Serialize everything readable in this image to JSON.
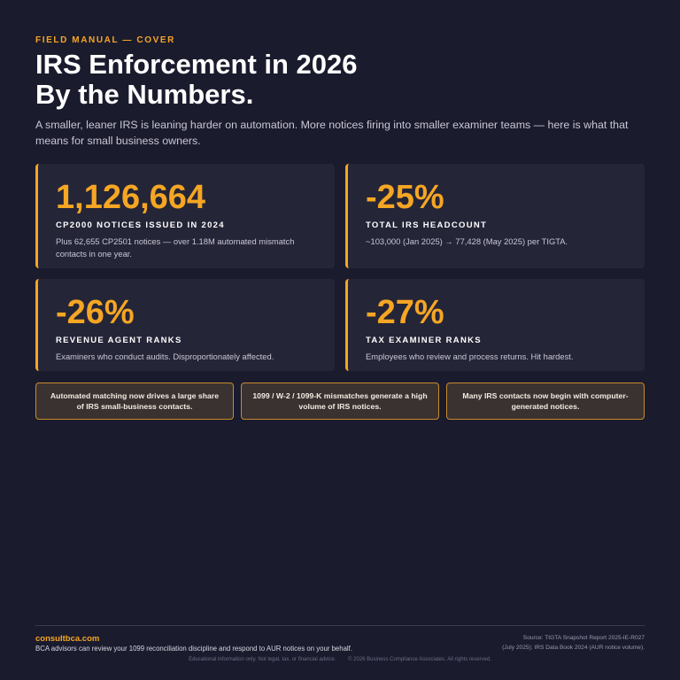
{
  "header": {
    "eyebrow": "FIELD MANUAL — COVER",
    "title_line1": "IRS Enforcement in 2026",
    "title_line2": "By the Numbers.",
    "subtitle": "A smaller, leaner IRS is leaning harder on automation. More notices firing into smaller examiner teams — here is what that means for small business owners."
  },
  "stats": [
    {
      "value": "1,126,664",
      "label": "CP2000 NOTICES ISSUED IN 2024",
      "desc": "Plus 62,655 CP2501 notices — over 1.18M automated mismatch contacts in one year."
    },
    {
      "value": "-25%",
      "label": "TOTAL IRS HEADCOUNT",
      "desc": "~103,000 (Jan 2025) → 77,428 (May 2025) per TIGTA."
    },
    {
      "value": "-26%",
      "label": "REVENUE AGENT RANKS",
      "desc": "Examiners who conduct audits. Disproportionately affected."
    },
    {
      "value": "-27%",
      "label": "TAX EXAMINER RANKS",
      "desc": "Employees who review and process returns. Hit hardest."
    }
  ],
  "callouts": [
    "Automated matching now drives a large share of IRS small-business contacts.",
    "1099 / W-2 / 1099-K mismatches generate a high volume of IRS notices.",
    "Many IRS contacts now begin with computer-generated notices."
  ],
  "footer": {
    "brand": "consultbca.com",
    "cta": "BCA advisors can review your 1099 reconciliation discipline and respond to AUR notices on your behalf.",
    "source_line1": "Source: TIGTA Snapshot Report 2025-IE-R027",
    "source_line2": "(July 2025); IRS Data Book 2024 (AUR notice volume).",
    "disclaimer": "Educational information only. Not legal, tax, or financial advice.",
    "copyright": "© 2026 Business Compliance Associates. All rights reserved."
  },
  "colors": {
    "background": "#1b1b2e",
    "card": "#252538",
    "accent": "#f5a623"
  }
}
